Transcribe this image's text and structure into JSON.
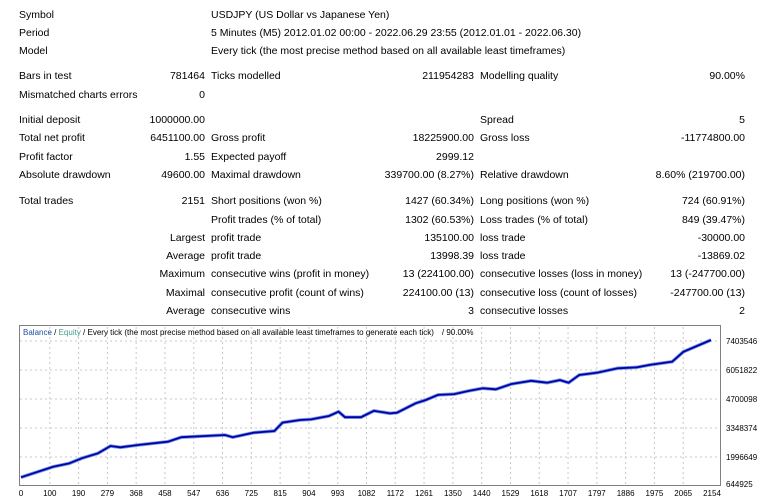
{
  "header": [
    {
      "label": "Symbol",
      "value": "USDJPY (US Dollar vs Japanese Yen)"
    },
    {
      "label": "Period",
      "value": "5 Minutes (M5) 2012.01.02 00:00 - 2022.06.29 23:55 (2012.01.01 - 2022.06.30)"
    },
    {
      "label": "Model",
      "value": "Every tick (the most precise method based on all available least timeframes)"
    }
  ],
  "rows": [
    [
      "Bars in test",
      "781464",
      "Ticks modelled",
      "211954283",
      "Modelling quality",
      "90.00%"
    ],
    [
      "Mismatched charts errors",
      "0",
      "",
      "",
      "",
      ""
    ],
    [
      "Initial deposit",
      "1000000.00",
      "",
      "",
      "Spread",
      "5"
    ],
    [
      "Total net profit",
      "6451100.00",
      "Gross profit",
      "18225900.00",
      "Gross loss",
      "-11774800.00"
    ],
    [
      "Profit factor",
      "1.55",
      "Expected payoff",
      "2999.12",
      "",
      ""
    ],
    [
      "Absolute drawdown",
      "49600.00",
      "Maximal drawdown",
      "339700.00 (8.27%)",
      "Relative drawdown",
      "8.60% (219700.00)"
    ],
    [
      "Total trades",
      "2151",
      "Short positions (won %)",
      "1427 (60.34%)",
      "Long positions (won %)",
      "724 (60.91%)"
    ],
    [
      "",
      "",
      "Profit trades (% of total)",
      "1302 (60.53%)",
      "Loss trades (% of total)",
      "849 (39.47%)"
    ],
    [
      "",
      "Largest",
      "profit trade",
      "135100.00",
      "loss trade",
      "-30000.00"
    ],
    [
      "",
      "Average",
      "profit trade",
      "13998.39",
      "loss trade",
      "-13869.02"
    ],
    [
      "",
      "Maximum",
      "consecutive wins (profit in money)",
      "13 (224100.00)",
      "consecutive losses (loss in money)",
      "13 (-247700.00)"
    ],
    [
      "",
      "Maximal",
      "consecutive profit (count of wins)",
      "224100.00 (13)",
      "consecutive loss (count of losses)",
      "-247700.00 (13)"
    ],
    [
      "",
      "Average",
      "consecutive wins",
      "3",
      "consecutive losses",
      "2"
    ]
  ],
  "chart_data": {
    "type": "line",
    "legend": {
      "balance": "Balance",
      "sep1": " / ",
      "equity": "Equity",
      "rest": " / Every tick (the most precise method based on all available least timeframes to generate each tick)",
      "quality": "/ 90.00%"
    },
    "x_ticks": [
      "0",
      "100",
      "190",
      "279",
      "368",
      "458",
      "547",
      "636",
      "725",
      "815",
      "904",
      "993",
      "1082",
      "1172",
      "1261",
      "1350",
      "1440",
      "1529",
      "1618",
      "1707",
      "1797",
      "1886",
      "1975",
      "2065",
      "2154"
    ],
    "y_ticks": [
      "7403546",
      "6051822",
      "4700098",
      "3348374",
      "1996649",
      "644925"
    ],
    "xlim": [
      0,
      2154
    ],
    "ylim": [
      644925,
      7403546
    ],
    "grid": true,
    "colors": {
      "balance": "#0000b0",
      "equity": "#7a9ad8",
      "balance_label": "#1f4fa8",
      "equity_label": "#3f9f8f",
      "grid": "#c8c8c8",
      "border": "#808080"
    },
    "series": [
      {
        "name": "Balance",
        "x": [
          0,
          100,
          150,
          190,
          240,
          279,
          310,
          368,
          458,
          500,
          636,
          660,
          725,
          790,
          815,
          870,
          904,
          960,
          990,
          1010,
          1060,
          1100,
          1150,
          1172,
          1230,
          1261,
          1300,
          1350,
          1400,
          1440,
          1480,
          1529,
          1590,
          1640,
          1680,
          1707,
          1740,
          1797,
          1860,
          1920,
          1960,
          2030,
          2065,
          2151
        ],
        "y": [
          1050000,
          1540000,
          1700000,
          1940000,
          2170000,
          2510000,
          2450000,
          2560000,
          2710000,
          2920000,
          3020000,
          2920000,
          3130000,
          3210000,
          3600000,
          3720000,
          3750000,
          3910000,
          4110000,
          3850000,
          3850000,
          4150000,
          4030000,
          4060000,
          4500000,
          4650000,
          4890000,
          4930000,
          5090000,
          5200000,
          5150000,
          5400000,
          5550000,
          5460000,
          5580000,
          5460000,
          5820000,
          5930000,
          6130000,
          6180000,
          6290000,
          6440000,
          6900000,
          7450000
        ]
      }
    ]
  }
}
